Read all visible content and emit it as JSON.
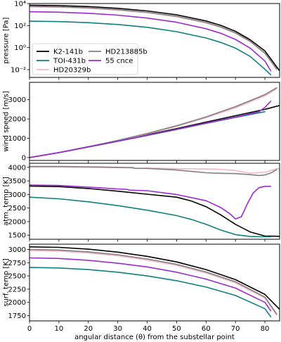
{
  "colors": {
    "K2-141b": "#000000",
    "TOI-431b": "#0f8080",
    "HD20329b": "#f4b6c2",
    "HD213885b": "#808080",
    "55 cnce": "#9b2bcf"
  },
  "chart_data": [
    {
      "type": "line",
      "panel": "pressure",
      "ylabel": "pressure [Pa]",
      "xlabel": "",
      "yscale": "log",
      "xlim": [
        0,
        85
      ],
      "ylim": [
        0.002,
        10000
      ],
      "xticks": [
        "0",
        "10",
        "20",
        "30",
        "40",
        "50",
        "60",
        "70",
        "80"
      ],
      "xtick_values": [
        0,
        10,
        20,
        30,
        40,
        50,
        60,
        70,
        80
      ],
      "yticks": [
        "10⁻²",
        "10⁰",
        "10²",
        "10⁴"
      ],
      "ytick_values": [
        0.01,
        1,
        100,
        10000
      ],
      "legend": {
        "placement": "bottom-left",
        "entries": [
          "K2-141b",
          "HD213885b",
          "TOI-431b",
          "55 cnce",
          "HD20329b"
        ]
      },
      "series": [
        {
          "name": "K2-141b",
          "x": [
            0,
            10,
            20,
            30,
            40,
            50,
            60,
            65,
            70,
            75,
            80,
            85
          ],
          "y": [
            7000,
            6500,
            5300,
            3700,
            2150,
            950,
            260,
            105,
            30,
            5.2,
            0.5,
            0.008
          ]
        },
        {
          "name": "TOI-431b",
          "x": [
            0,
            10,
            20,
            30,
            40,
            50,
            60,
            65,
            70,
            75,
            80,
            82
          ],
          "y": [
            250,
            230,
            185,
            125,
            70,
            28,
            7.5,
            3,
            0.9,
            0.16,
            0.011,
            0.0035
          ]
        },
        {
          "name": "HD20329b",
          "x": [
            0,
            10,
            20,
            30,
            40,
            50,
            60,
            65,
            70,
            75,
            80,
            84
          ],
          "y": [
            5000,
            4600,
            3700,
            2500,
            1450,
            620,
            170,
            70,
            20,
            3.4,
            0.3,
            0.01
          ]
        },
        {
          "name": "HD213885b",
          "x": [
            0,
            10,
            20,
            30,
            40,
            50,
            60,
            65,
            70,
            75,
            80,
            84
          ],
          "y": [
            5500,
            5100,
            4100,
            2800,
            1600,
            700,
            190,
            75,
            22,
            3.8,
            0.32,
            0.012
          ]
        },
        {
          "name": "55 cnce",
          "x": [
            0,
            10,
            20,
            30,
            40,
            50,
            60,
            65,
            70,
            75,
            80,
            82
          ],
          "y": [
            1800,
            1650,
            1300,
            880,
            480,
            200,
            52,
            20,
            5.6,
            0.9,
            0.06,
            0.008
          ]
        }
      ]
    },
    {
      "type": "line",
      "panel": "wind",
      "ylabel": "wind speed [m/s]",
      "xlabel": "",
      "xlim": [
        0,
        85
      ],
      "ylim": [
        -150,
        3900
      ],
      "xticks": [
        "0",
        "10",
        "20",
        "30",
        "40",
        "50",
        "60",
        "70",
        "80"
      ],
      "xtick_values": [
        0,
        10,
        20,
        30,
        40,
        50,
        60,
        70,
        80
      ],
      "yticks": [
        "0",
        "1000",
        "2000",
        "3000"
      ],
      "ytick_values": [
        0,
        1000,
        2000,
        3000
      ],
      "series": [
        {
          "name": "K2-141b",
          "x": [
            0,
            10,
            20,
            30,
            40,
            50,
            60,
            70,
            80,
            85
          ],
          "y": [
            0,
            260,
            560,
            860,
            1180,
            1500,
            1840,
            2170,
            2500,
            2700
          ]
        },
        {
          "name": "TOI-431b",
          "x": [
            0,
            10,
            20,
            30,
            40,
            50,
            60,
            70,
            80
          ],
          "y": [
            0,
            255,
            545,
            840,
            1140,
            1450,
            1770,
            2080,
            2380
          ]
        },
        {
          "name": "HD20329b",
          "x": [
            0,
            10,
            20,
            30,
            40,
            50,
            60,
            70,
            80,
            84
          ],
          "y": [
            0,
            260,
            560,
            880,
            1230,
            1620,
            2070,
            2580,
            3200,
            3560
          ]
        },
        {
          "name": "HD213885b",
          "x": [
            0,
            10,
            20,
            30,
            40,
            50,
            60,
            70,
            80,
            84
          ],
          "y": [
            0,
            260,
            565,
            890,
            1250,
            1650,
            2110,
            2640,
            3260,
            3620
          ]
        },
        {
          "name": "55 cnce",
          "x": [
            0,
            10,
            20,
            30,
            40,
            50,
            60,
            70,
            78,
            80,
            82
          ],
          "y": [
            0,
            260,
            550,
            850,
            1160,
            1470,
            1790,
            2100,
            2380,
            2600,
            2920
          ]
        }
      ]
    },
    {
      "type": "line",
      "panel": "atm-temp",
      "ylabel": "atm. temp [K]",
      "xlabel": "",
      "xlim": [
        0,
        85
      ],
      "ylim": [
        1350,
        4150
      ],
      "xticks": [
        "0",
        "10",
        "20",
        "30",
        "40",
        "50",
        "60",
        "70",
        "80"
      ],
      "xtick_values": [
        0,
        10,
        20,
        30,
        40,
        50,
        60,
        70,
        80
      ],
      "yticks": [
        "1500",
        "2000",
        "2500",
        "3000",
        "3500",
        "4000"
      ],
      "ytick_values": [
        1500,
        2000,
        2500,
        3000,
        3500,
        4000
      ],
      "series": [
        {
          "name": "K2-141b",
          "x": [
            0,
            10,
            20,
            30,
            40,
            50,
            55,
            60,
            65,
            70,
            75,
            80,
            85
          ],
          "y": [
            3310,
            3290,
            3220,
            3120,
            3010,
            2900,
            2760,
            2550,
            2250,
            1900,
            1620,
            1470,
            1460
          ]
        },
        {
          "name": "TOI-431b",
          "x": [
            0,
            10,
            20,
            30,
            40,
            50,
            55,
            60,
            65,
            70,
            75,
            80,
            82
          ],
          "y": [
            2900,
            2840,
            2730,
            2590,
            2420,
            2220,
            2080,
            1900,
            1690,
            1520,
            1450,
            1440,
            1440
          ]
        },
        {
          "name": "HD20329b",
          "x": [
            0,
            10,
            20,
            30,
            35,
            36,
            40,
            50,
            60,
            65,
            70,
            75,
            80,
            83,
            84,
            85
          ],
          "y": [
            4010,
            4010,
            4000,
            3990,
            3980,
            3960,
            3970,
            3950,
            3940,
            3930,
            3880,
            3780,
            3820,
            3910,
            3960,
            3940
          ]
        },
        {
          "name": "HD213885b",
          "x": [
            0,
            10,
            20,
            30,
            35,
            36,
            40,
            50,
            55,
            60,
            65,
            70,
            75,
            78,
            80,
            82,
            84
          ],
          "y": [
            4030,
            4030,
            4020,
            4000,
            3990,
            3960,
            3960,
            3900,
            3850,
            3800,
            3780,
            3770,
            3730,
            3700,
            3720,
            3790,
            3920
          ]
        },
        {
          "name": "55 cnce",
          "x": [
            0,
            10,
            20,
            30,
            33,
            34,
            40,
            50,
            60,
            65,
            68,
            70,
            72,
            74,
            76,
            78,
            80,
            82
          ],
          "y": [
            3350,
            3330,
            3270,
            3200,
            3190,
            3160,
            3140,
            3000,
            2770,
            2520,
            2300,
            2100,
            2180,
            2650,
            3050,
            3250,
            3300,
            3300
          ]
        }
      ]
    },
    {
      "type": "line",
      "panel": "surf-temp",
      "ylabel": "surf. temp [K]",
      "xlabel": "angular distance (θ) from the substellar point",
      "xlim": [
        0,
        85
      ],
      "ylim": [
        1650,
        3100
      ],
      "xticks": [
        "0",
        "10",
        "20",
        "30",
        "40",
        "50",
        "60",
        "70",
        "80"
      ],
      "xtick_values": [
        0,
        10,
        20,
        30,
        40,
        50,
        60,
        70,
        80
      ],
      "yticks": [
        "1750",
        "2000",
        "2250",
        "2500",
        "2750",
        "3000"
      ],
      "ytick_values": [
        1750,
        2000,
        2250,
        2500,
        2750,
        3000
      ],
      "series": [
        {
          "name": "K2-141b",
          "x": [
            0,
            10,
            20,
            30,
            40,
            50,
            60,
            70,
            80,
            85
          ],
          "y": [
            3050,
            3040,
            3005,
            2950,
            2870,
            2765,
            2620,
            2430,
            2150,
            1870
          ]
        },
        {
          "name": "TOI-431b",
          "x": [
            0,
            10,
            20,
            30,
            40,
            50,
            60,
            70,
            80,
            82
          ],
          "y": [
            2660,
            2650,
            2620,
            2570,
            2500,
            2410,
            2290,
            2130,
            1880,
            1730
          ]
        },
        {
          "name": "HD20329b",
          "x": [
            0,
            10,
            20,
            30,
            40,
            50,
            60,
            70,
            80,
            84
          ],
          "y": [
            2980,
            2970,
            2935,
            2880,
            2800,
            2700,
            2555,
            2370,
            2080,
            1760
          ]
        },
        {
          "name": "HD213885b",
          "x": [
            0,
            10,
            20,
            30,
            40,
            50,
            60,
            70,
            80,
            84
          ],
          "y": [
            3000,
            2990,
            2955,
            2900,
            2820,
            2720,
            2575,
            2390,
            2100,
            1780
          ]
        },
        {
          "name": "55 cnce",
          "x": [
            0,
            10,
            20,
            30,
            40,
            50,
            60,
            70,
            80,
            82
          ],
          "y": [
            2840,
            2830,
            2795,
            2740,
            2670,
            2570,
            2440,
            2270,
            2000,
            1840
          ]
        }
      ]
    }
  ]
}
